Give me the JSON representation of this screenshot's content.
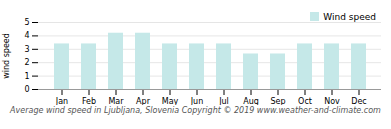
{
  "chart_data": {
    "type": "bar",
    "title": "Average wind speed in Ljubljana, Slovenia   Copyright © 2019 www.weather-and-climate.com",
    "y_label": "wind speed",
    "categories": [
      "Jan",
      "Feb",
      "Mar",
      "Apr",
      "May",
      "Jun",
      "Jul",
      "Aug",
      "Sep",
      "Oct",
      "Nov",
      "Dec"
    ],
    "series": [
      {
        "name": "Wind speed",
        "color": "#c5e8e8",
        "values": [
          3.4,
          3.4,
          4.2,
          4.2,
          3.4,
          3.4,
          3.4,
          2.65,
          2.65,
          3.4,
          3.4,
          3.4
        ]
      }
    ],
    "ylim": [
      0,
      5
    ],
    "yticks": [
      0,
      1,
      2,
      3,
      4,
      5
    ],
    "grid": true,
    "legend": "upper right"
  }
}
